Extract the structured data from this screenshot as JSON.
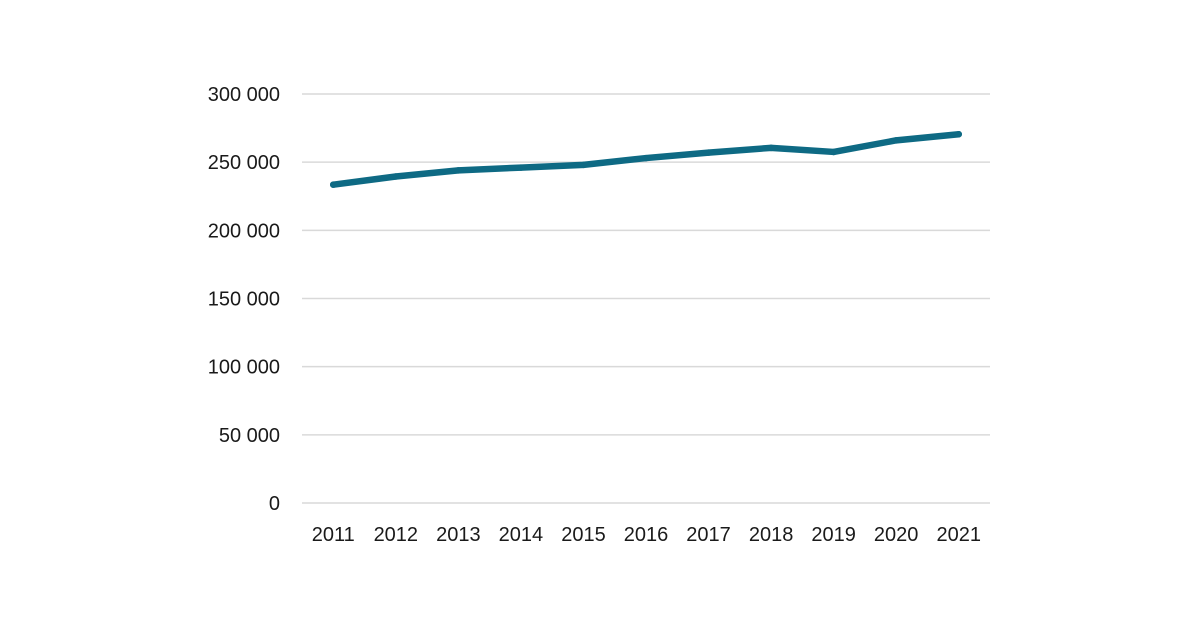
{
  "chart_data": {
    "type": "line",
    "title": "",
    "xlabel": "",
    "ylabel": "",
    "categories": [
      "2011",
      "2012",
      "2013",
      "2014",
      "2015",
      "2016",
      "2017",
      "2018",
      "2019",
      "2020",
      "2021"
    ],
    "series": [
      {
        "values": [
          233500,
          239500,
          244000,
          246000,
          248000,
          253000,
          257000,
          260500,
          257500,
          266000,
          270500
        ],
        "color": "#0e6a84"
      }
    ],
    "ylim": [
      0,
      300000
    ],
    "yticks": [
      0,
      50000,
      100000,
      150000,
      200000,
      250000,
      300000
    ],
    "ytick_labels": [
      "0",
      "50 000",
      "100 000",
      "150 000",
      "200 000",
      "250 000",
      "300 000"
    ],
    "grid": true,
    "grid_color": "#d9d9d9",
    "legend": "none"
  }
}
